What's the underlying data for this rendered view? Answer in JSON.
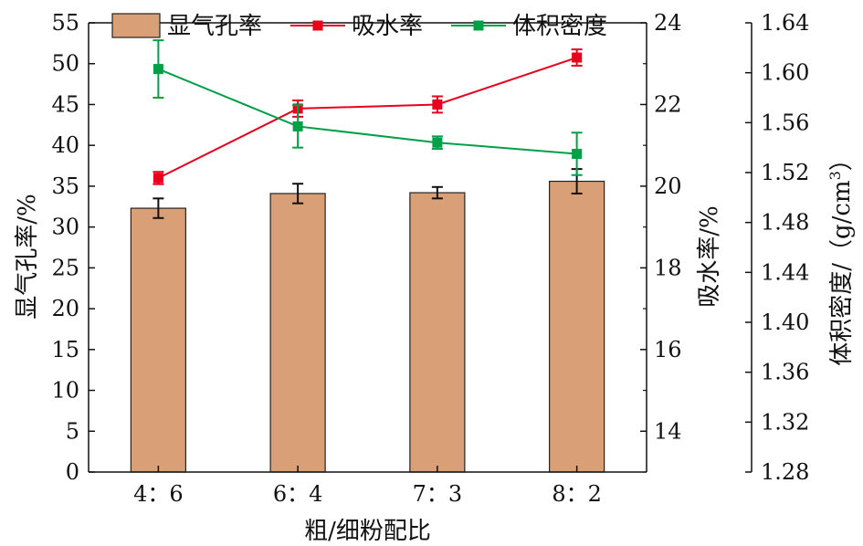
{
  "chart_data": {
    "type": "bar",
    "categories": [
      "4：6",
      "6：4",
      "7：3",
      "8：2"
    ],
    "xlabel": "粗/细粉配比",
    "series": [
      {
        "name": "显气孔率",
        "kind": "bar",
        "axis": "left",
        "values": [
          32.3,
          34.1,
          34.2,
          35.6
        ],
        "errors": [
          1.2,
          1.2,
          0.7,
          1.5
        ],
        "color": "#D9A077"
      },
      {
        "name": "吸水率",
        "kind": "line",
        "axis": "right1",
        "values": [
          20.2,
          21.9,
          22.0,
          23.15
        ],
        "errors": [
          0.15,
          0.2,
          0.2,
          0.2
        ],
        "color": "#E8001C"
      },
      {
        "name": "体积密度",
        "kind": "line",
        "axis": "right2",
        "values": [
          1.603,
          1.557,
          1.544,
          1.535
        ],
        "errors": [
          0.023,
          0.017,
          0.005,
          0.017
        ],
        "color": "#00A047"
      }
    ],
    "axes": {
      "left": {
        "label": "显气孔率/%",
        "ylim": [
          0,
          55
        ],
        "ticks": [
          "0",
          "5",
          "10",
          "15",
          "20",
          "25",
          "30",
          "35",
          "40",
          "45",
          "50",
          "55"
        ]
      },
      "right1": {
        "label": "吸水率/%",
        "ylim": [
          13,
          24
        ],
        "ticks": [
          "14",
          "16",
          "18",
          "20",
          "22",
          "24"
        ]
      },
      "right2": {
        "label": "体积密度/（g/cm3）",
        "ylim": [
          1.28,
          1.64
        ],
        "ticks": [
          "1.28",
          "1.32",
          "1.36",
          "1.40",
          "1.44",
          "1.48",
          "1.52",
          "1.56",
          "1.60",
          "1.64"
        ]
      }
    },
    "legend": {
      "placement": "top",
      "items": [
        "显气孔率",
        "吸水率",
        "体积密度"
      ]
    },
    "grid": false
  }
}
